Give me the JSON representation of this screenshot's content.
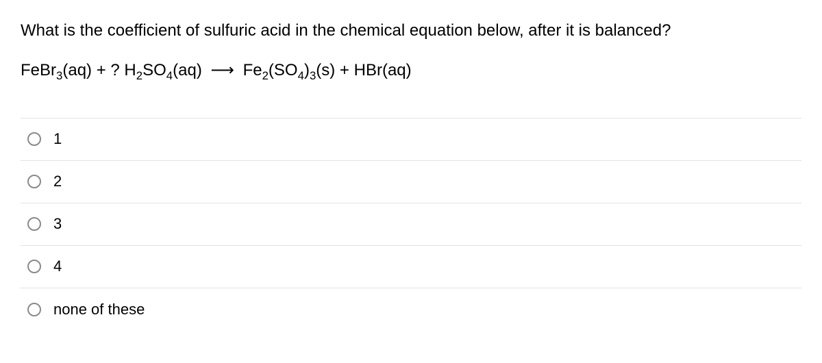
{
  "question": {
    "prompt": "What is the coefficient of sulfuric acid in the chemical equation below, after it is balanced?",
    "equation_parts": {
      "r1_base": "FeBr",
      "r1_sub": "3",
      "r1_state": "(aq)",
      "plus1": " + ? H",
      "r2_sub1": "2",
      "r2_mid": "SO",
      "r2_sub2": "4",
      "r2_state": "(aq)",
      "arrow": "⟶",
      "p1_base": " Fe",
      "p1_sub1": "2",
      "p1_mid": "(SO",
      "p1_sub2": "4",
      "p1_mid2": ")",
      "p1_sub3": "3",
      "p1_state": "(s)",
      "plus2": " + HBr(aq)"
    }
  },
  "options": [
    {
      "label": "1"
    },
    {
      "label": "2"
    },
    {
      "label": "3"
    },
    {
      "label": "4"
    },
    {
      "label": "none of these"
    }
  ],
  "colors": {
    "text": "#000000",
    "border": "#e2e2e2",
    "radio_border": "#8a8a8a",
    "background": "#ffffff"
  },
  "typography": {
    "question_fontsize": 24,
    "option_fontsize": 22
  }
}
